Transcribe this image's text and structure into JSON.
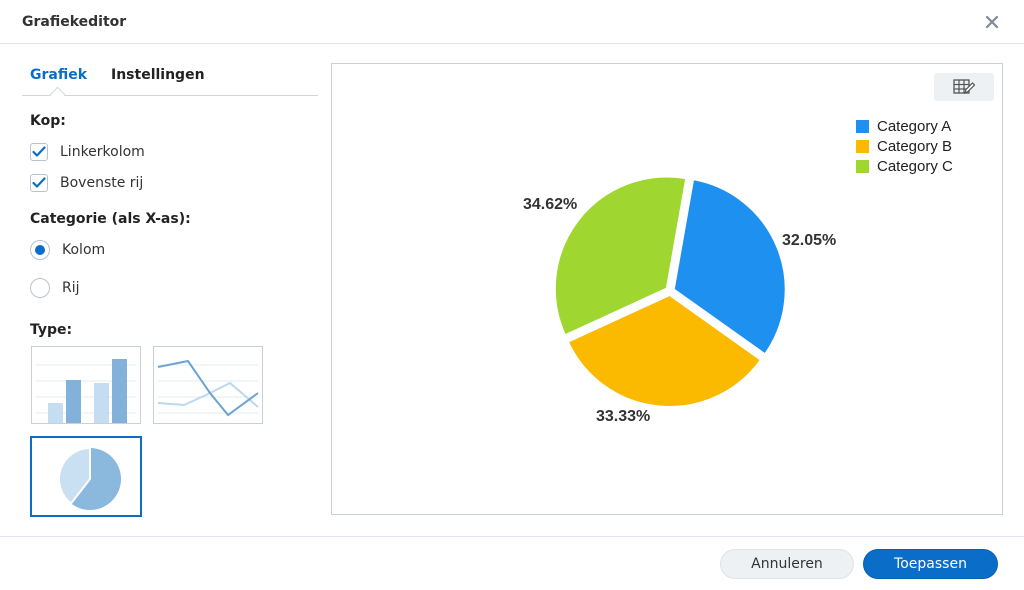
{
  "window": {
    "title": "Grafiekeditor"
  },
  "tabs": [
    {
      "label": "Grafiek",
      "active": true
    },
    {
      "label": "Instellingen",
      "active": false
    }
  ],
  "header_section": {
    "label": "Kop:",
    "options": [
      {
        "label": "Linkerkolom",
        "checked": true
      },
      {
        "label": "Bovenste rij",
        "checked": true
      }
    ]
  },
  "category_section": {
    "label": "Categorie (als X-as):",
    "options": [
      {
        "label": "Kolom",
        "selected": true
      },
      {
        "label": "Rij",
        "selected": false
      }
    ]
  },
  "type_section": {
    "label": "Type:",
    "types": [
      {
        "icon": "bar-chart-icon",
        "selected": false
      },
      {
        "icon": "line-chart-icon",
        "selected": false
      },
      {
        "icon": "pie-chart-icon",
        "selected": true
      }
    ]
  },
  "preview": {
    "edit_table_icon": "table-edit-icon"
  },
  "chart_data": {
    "type": "pie",
    "categories": [
      "Category A",
      "Category B",
      "Category C"
    ],
    "values": [
      32.05,
      33.33,
      34.62
    ],
    "labels": [
      "32.05%",
      "33.33%",
      "34.62%"
    ],
    "colors": [
      "#1e90f0",
      "#fbb900",
      "#9fd630"
    ],
    "legend_position": "top-right"
  },
  "footer": {
    "cancel_label": "Annuleren",
    "apply_label": "Toepassen"
  }
}
